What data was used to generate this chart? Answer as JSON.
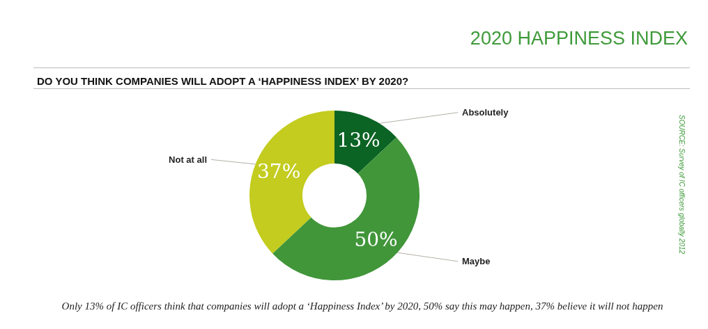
{
  "chart_data": {
    "type": "donut",
    "title": "2020 HAPPINESS INDEX",
    "subtitle": "DO YOU THINK COMPANIES WILL ADOPT A ‘HAPPINESS INDEX’ BY 2020?",
    "categories": [
      "Absolutely",
      "Maybe",
      "Not at all"
    ],
    "values": [
      13,
      50,
      37
    ],
    "colors": [
      "#0b6324",
      "#41963a",
      "#c3cc1f"
    ],
    "value_labels": [
      "13%",
      "50%",
      "37%"
    ],
    "legend": false,
    "annotations": [
      "SOURCE: Survey of IC officers globally 2012",
      "Only 13% of IC officers think that companies will adopt a ‘Happiness Index’ by 2020, 50% say this may happen, 37% believe it will not happen"
    ]
  }
}
